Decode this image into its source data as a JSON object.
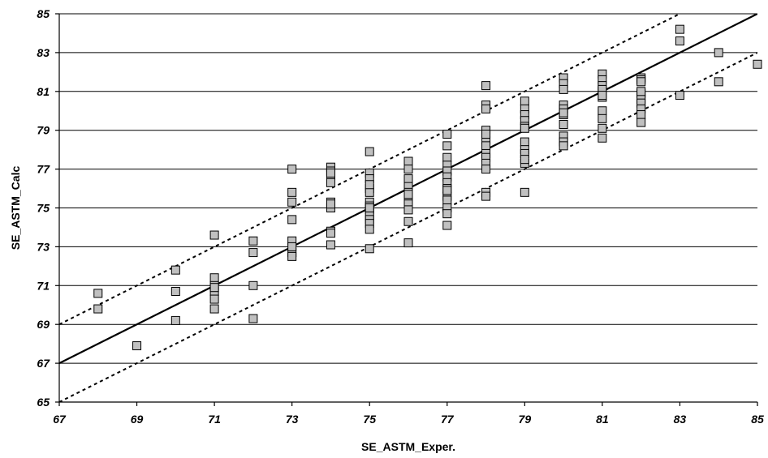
{
  "chart_data": {
    "type": "scatter",
    "title": "",
    "xlabel": "SE_ASTM_Exper.",
    "ylabel": "SE_ASTM_Calc",
    "xlim": [
      67,
      85
    ],
    "ylim": [
      65,
      85
    ],
    "x_ticks": [
      "67",
      "69",
      "71",
      "73",
      "75",
      "77",
      "79",
      "81",
      "83",
      "85"
    ],
    "y_ticks": [
      "65",
      "67",
      "69",
      "71",
      "73",
      "75",
      "77",
      "79",
      "81",
      "83",
      "85"
    ],
    "grid": "horizontal",
    "lines": [
      {
        "style": "solid",
        "x": [
          67,
          85
        ],
        "y": [
          67,
          85
        ]
      },
      {
        "style": "dashed",
        "x": [
          67,
          84
        ],
        "y": [
          69,
          86
        ]
      },
      {
        "style": "dashed",
        "x": [
          67,
          85
        ],
        "y": [
          65,
          83
        ]
      }
    ],
    "series": [
      {
        "x": [
          68,
          68,
          69,
          70,
          70,
          70,
          71,
          71,
          71,
          71,
          71,
          71,
          71,
          72,
          72,
          72,
          72,
          73,
          73,
          73,
          73,
          73,
          73,
          73,
          73,
          74,
          74,
          74,
          74,
          74,
          74,
          74,
          74,
          74,
          74,
          74,
          75,
          75,
          75,
          75,
          75,
          75,
          75,
          75,
          75,
          75,
          75,
          75,
          75,
          75,
          75,
          76,
          76,
          76,
          76,
          76,
          76,
          76,
          76,
          76,
          76,
          76,
          77,
          77,
          77,
          77,
          77,
          77,
          77,
          77,
          77,
          77,
          77,
          77,
          77,
          77,
          78,
          78,
          78,
          78,
          78,
          78,
          78,
          78,
          78,
          78,
          78,
          78,
          78,
          79,
          79,
          79,
          79,
          79,
          79,
          79,
          79,
          79,
          79,
          79,
          79,
          80,
          80,
          80,
          80,
          80,
          80,
          80,
          80,
          80,
          80,
          80,
          81,
          81,
          81,
          81,
          81,
          81,
          81,
          81,
          81,
          81,
          81,
          82,
          82,
          82,
          82,
          82,
          82,
          82,
          82,
          82,
          82,
          83,
          83,
          83,
          84,
          84,
          85
        ],
        "y": [
          70.6,
          69.8,
          67.9,
          71.8,
          70.7,
          69.2,
          73.6,
          71.4,
          71.0,
          70.7,
          70.3,
          69.8,
          70.9,
          73.3,
          72.7,
          71.0,
          69.3,
          77.0,
          75.8,
          75.3,
          74.4,
          73.3,
          72.7,
          72.5,
          73.0,
          77.1,
          76.9,
          76.7,
          76.3,
          75.3,
          75.0,
          73.8,
          73.7,
          73.1,
          76.8,
          75.2,
          77.9,
          76.8,
          76.5,
          76.0,
          75.8,
          75.3,
          75.1,
          74.9,
          74.6,
          74.4,
          74.2,
          73.9,
          72.9,
          76.2,
          75.0,
          77.4,
          77.0,
          76.5,
          76.1,
          75.8,
          75.5,
          75.2,
          74.9,
          74.3,
          73.2,
          75.7,
          78.8,
          78.2,
          77.6,
          77.2,
          76.9,
          76.6,
          76.3,
          76.0,
          75.6,
          75.4,
          75.0,
          74.7,
          74.1,
          75.9,
          81.3,
          80.3,
          80.1,
          79.0,
          78.5,
          78.2,
          77.8,
          77.6,
          77.3,
          77.0,
          75.8,
          75.6,
          78.8,
          80.5,
          80.1,
          79.8,
          79.5,
          79.2,
          78.4,
          78.0,
          77.8,
          77.3,
          75.8,
          79.1,
          77.5,
          81.7,
          81.4,
          81.1,
          80.3,
          80.1,
          79.8,
          79.3,
          78.7,
          78.4,
          78.2,
          79.9,
          81.9,
          81.6,
          81.3,
          81.0,
          80.7,
          80.0,
          79.6,
          79.1,
          78.6,
          81.1,
          80.8,
          81.7,
          81.6,
          81.5,
          80.9,
          80.6,
          80.4,
          80.1,
          79.8,
          79.4,
          81.0,
          84.2,
          83.6,
          80.8,
          83.0,
          81.5,
          82.4
        ]
      }
    ]
  }
}
